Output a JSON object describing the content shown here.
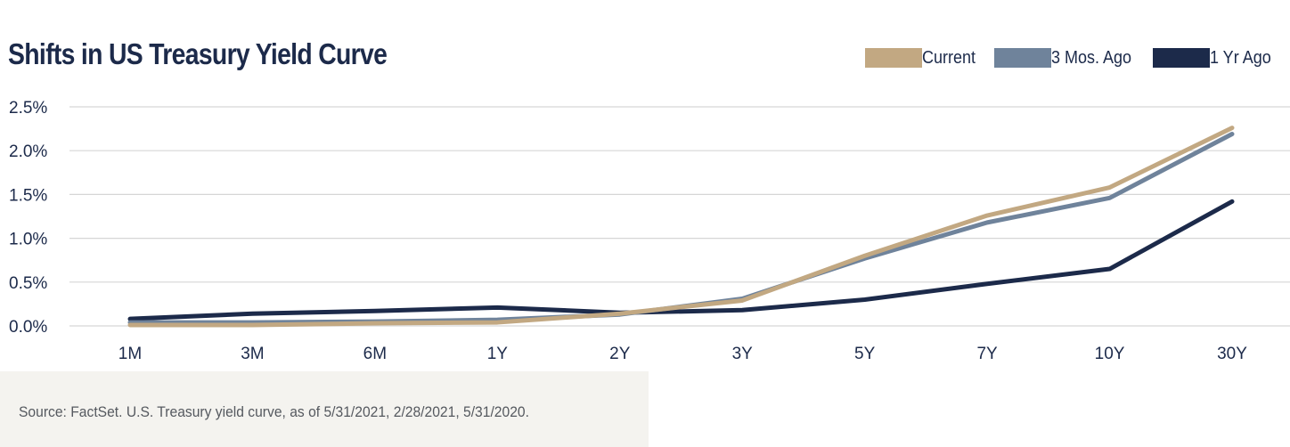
{
  "title": "Shifts in US Treasury Yield Curve",
  "source": "Source: FactSet. U.S. Treasury yield curve, as of 5/31/2021, 2/28/2021, 5/31/2020.",
  "legend": [
    {
      "label": "Current",
      "color": "#c2a882"
    },
    {
      "label": "3 Mos. Ago",
      "color": "#6f839b"
    },
    {
      "label": "1 Yr Ago",
      "color": "#1c2a4a"
    }
  ],
  "chart_data": {
    "type": "line",
    "title": "Shifts in US Treasury Yield Curve",
    "categories": [
      "1M",
      "3M",
      "6M",
      "1Y",
      "2Y",
      "3Y",
      "5Y",
      "7Y",
      "10Y",
      "30Y"
    ],
    "yticks": [
      "0.0%",
      "0.5%",
      "1.0%",
      "1.5%",
      "2.0%",
      "2.5%"
    ],
    "ylim": [
      0,
      2.5
    ],
    "grid": true,
    "legend_position": "top-right",
    "series": [
      {
        "name": "Current",
        "color": "#c2a882",
        "values": [
          0.01,
          0.01,
          0.03,
          0.04,
          0.14,
          0.29,
          0.8,
          1.26,
          1.58,
          2.26
        ]
      },
      {
        "name": "3 Mos. Ago",
        "color": "#6f839b",
        "values": [
          0.04,
          0.04,
          0.05,
          0.07,
          0.13,
          0.31,
          0.77,
          1.18,
          1.46,
          2.19
        ]
      },
      {
        "name": "1 Yr Ago",
        "color": "#1c2a4a",
        "values": [
          0.08,
          0.14,
          0.17,
          0.21,
          0.15,
          0.18,
          0.3,
          0.48,
          0.65,
          1.42
        ]
      }
    ]
  }
}
